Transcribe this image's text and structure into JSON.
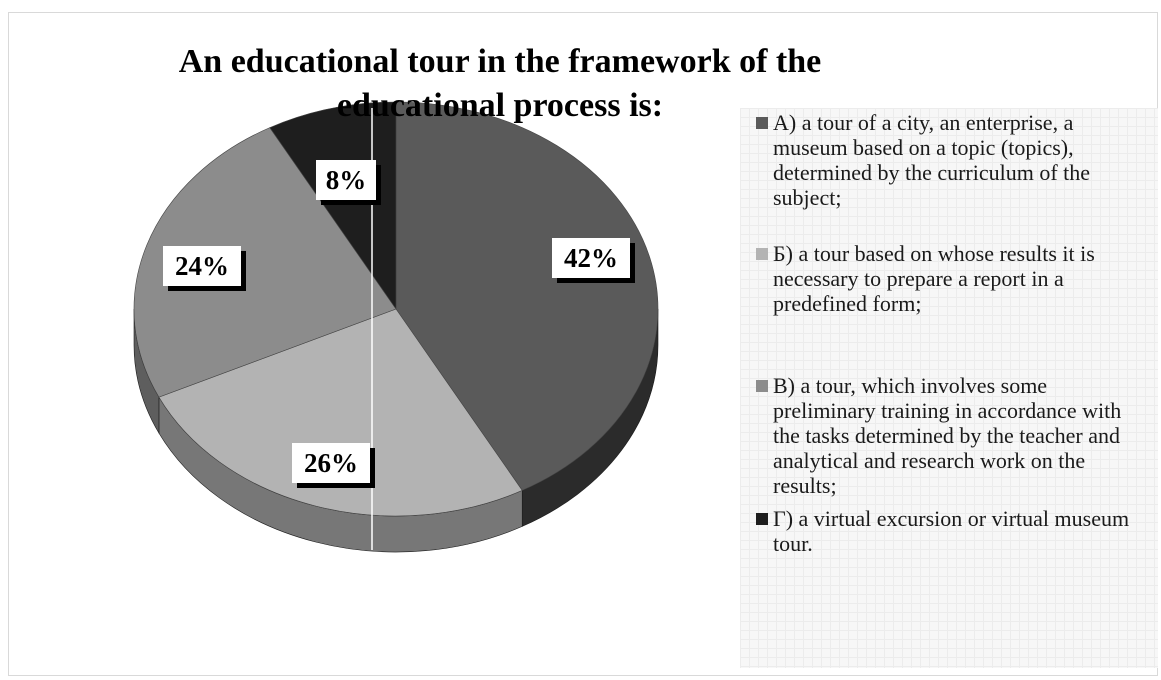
{
  "chart_data": {
    "type": "pie",
    "title": "An educational tour in the framework of the educational process is:",
    "categories": [
      "A) a tour of a city, an enterprise, a museum based on a topic (topics), determined by the curriculum of the subject;",
      "Б) a tour based on whose results it is necessary to prepare a report in a predefined form;",
      "B) a tour, which involves some preliminary training in accordance with the tasks determined by the teacher and analytical and research work on the results;",
      "Г) a virtual excursion or virtual museum tour."
    ],
    "values": [
      42,
      26,
      24,
      8
    ],
    "data_labels": [
      "42%",
      "26%",
      "24%",
      "8%"
    ],
    "colors": [
      "#5a5a5a",
      "#b3b3b3",
      "#8c8c8c",
      "#1e1e1e"
    ],
    "side_colors": [
      "#2b2b2b",
      "#777777",
      "#5e5e5e",
      "#111111"
    ],
    "legend_position": "right",
    "style": "3d-pie"
  }
}
